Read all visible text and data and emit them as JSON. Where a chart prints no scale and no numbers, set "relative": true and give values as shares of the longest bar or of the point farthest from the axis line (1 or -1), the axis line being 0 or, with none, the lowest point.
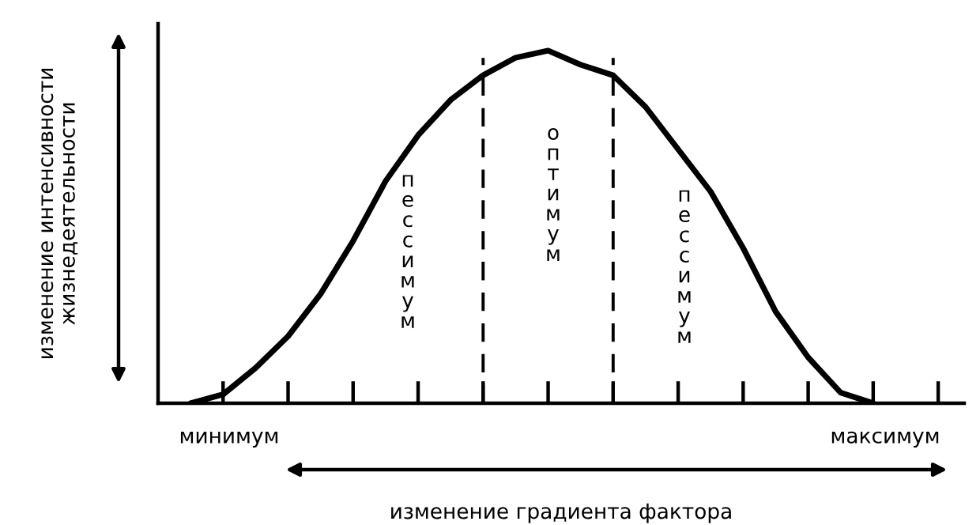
{
  "chart_data": {
    "type": "line",
    "relative": true,
    "xlabel": "изменение градиента фактора",
    "ylabel": "изменение интенсивности\nжизнедеятельности",
    "categories": [
      null,
      null,
      null,
      null,
      null,
      null,
      null,
      null,
      null,
      null,
      null,
      null,
      null,
      null,
      null,
      null,
      null,
      null,
      null,
      null,
      null,
      null
    ],
    "series": [
      {
        "color": "#000000",
        "values": [
          0,
          0.025,
          0.1,
          0.19,
          0.31,
          0.46,
          0.63,
          0.76,
          0.86,
          0.93,
          0.98,
          1.0,
          0.96,
          0.93,
          0.84,
          0.72,
          0.6,
          0.44,
          0.26,
          0.13,
          0.03,
          0
        ]
      }
    ],
    "annotations": [
      "пессимум",
      "оптимум",
      "пессимум",
      "минимум",
      "максимум"
    ],
    "grid": false,
    "legend": false,
    "marker": "none",
    "line_style": "solid"
  }
}
